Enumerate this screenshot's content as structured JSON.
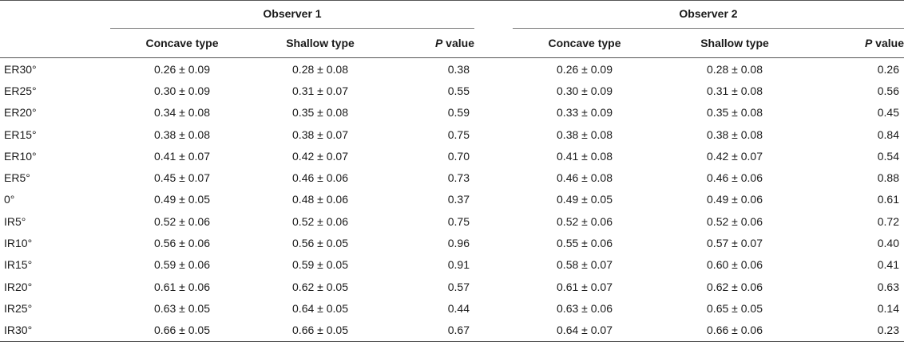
{
  "groups": {
    "observer1": "Observer 1",
    "observer2": "Observer 2"
  },
  "columns": {
    "concave": "Concave type",
    "shallow": "Shallow type",
    "p_letter": "P",
    "p_rest": " value"
  },
  "rows": [
    {
      "label": "ER30°",
      "o1_concave": "0.26 ± 0.09",
      "o1_shallow": "0.28 ± 0.08",
      "o1_p": "0.38",
      "o2_concave": "0.26 ± 0.09",
      "o2_shallow": "0.28 ± 0.08",
      "o2_p": "0.26"
    },
    {
      "label": "ER25°",
      "o1_concave": "0.30 ± 0.09",
      "o1_shallow": "0.31 ± 0.07",
      "o1_p": "0.55",
      "o2_concave": "0.30 ± 0.09",
      "o2_shallow": "0.31 ± 0.08",
      "o2_p": "0.56"
    },
    {
      "label": "ER20°",
      "o1_concave": "0.34 ± 0.08",
      "o1_shallow": "0.35 ± 0.08",
      "o1_p": "0.59",
      "o2_concave": "0.33 ± 0.09",
      "o2_shallow": "0.35 ± 0.08",
      "o2_p": "0.45"
    },
    {
      "label": "ER15°",
      "o1_concave": "0.38 ± 0.08",
      "o1_shallow": "0.38 ± 0.07",
      "o1_p": "0.75",
      "o2_concave": "0.38 ± 0.08",
      "o2_shallow": "0.38 ± 0.08",
      "o2_p": "0.84"
    },
    {
      "label": "ER10°",
      "o1_concave": "0.41 ± 0.07",
      "o1_shallow": "0.42 ± 0.07",
      "o1_p": "0.70",
      "o2_concave": "0.41 ± 0.08",
      "o2_shallow": "0.42 ± 0.07",
      "o2_p": "0.54"
    },
    {
      "label": "ER5°",
      "o1_concave": "0.45 ± 0.07",
      "o1_shallow": "0.46 ± 0.06",
      "o1_p": "0.73",
      "o2_concave": "0.46 ± 0.08",
      "o2_shallow": "0.46 ± 0.06",
      "o2_p": "0.88"
    },
    {
      "label": "0°",
      "o1_concave": "0.49 ± 0.05",
      "o1_shallow": "0.48 ± 0.06",
      "o1_p": "0.37",
      "o2_concave": "0.49 ± 0.05",
      "o2_shallow": "0.49 ± 0.06",
      "o2_p": "0.61"
    },
    {
      "label": "IR5°",
      "o1_concave": "0.52 ± 0.06",
      "o1_shallow": "0.52 ± 0.06",
      "o1_p": "0.75",
      "o2_concave": "0.52 ± 0.06",
      "o2_shallow": "0.52 ± 0.06",
      "o2_p": "0.72"
    },
    {
      "label": "IR10°",
      "o1_concave": "0.56 ± 0.06",
      "o1_shallow": "0.56 ± 0.05",
      "o1_p": "0.96",
      "o2_concave": "0.55 ± 0.06",
      "o2_shallow": "0.57 ± 0.07",
      "o2_p": "0.40"
    },
    {
      "label": "IR15°",
      "o1_concave": "0.59 ± 0.06",
      "o1_shallow": "0.59 ± 0.05",
      "o1_p": "0.91",
      "o2_concave": "0.58 ± 0.07",
      "o2_shallow": "0.60 ± 0.06",
      "o2_p": "0.41"
    },
    {
      "label": "IR20°",
      "o1_concave": "0.61 ± 0.06",
      "o1_shallow": "0.62 ± 0.05",
      "o1_p": "0.57",
      "o2_concave": "0.61 ± 0.07",
      "o2_shallow": "0.62 ± 0.06",
      "o2_p": "0.63"
    },
    {
      "label": "IR25°",
      "o1_concave": "0.63 ± 0.05",
      "o1_shallow": "0.64 ± 0.05",
      "o1_p": "0.44",
      "o2_concave": "0.63 ± 0.06",
      "o2_shallow": "0.65 ± 0.05",
      "o2_p": "0.14"
    },
    {
      "label": "IR30°",
      "o1_concave": "0.66 ± 0.05",
      "o1_shallow": "0.66 ± 0.05",
      "o1_p": "0.67",
      "o2_concave": "0.64 ± 0.07",
      "o2_shallow": "0.66 ± 0.06",
      "o2_p": "0.23"
    }
  ]
}
